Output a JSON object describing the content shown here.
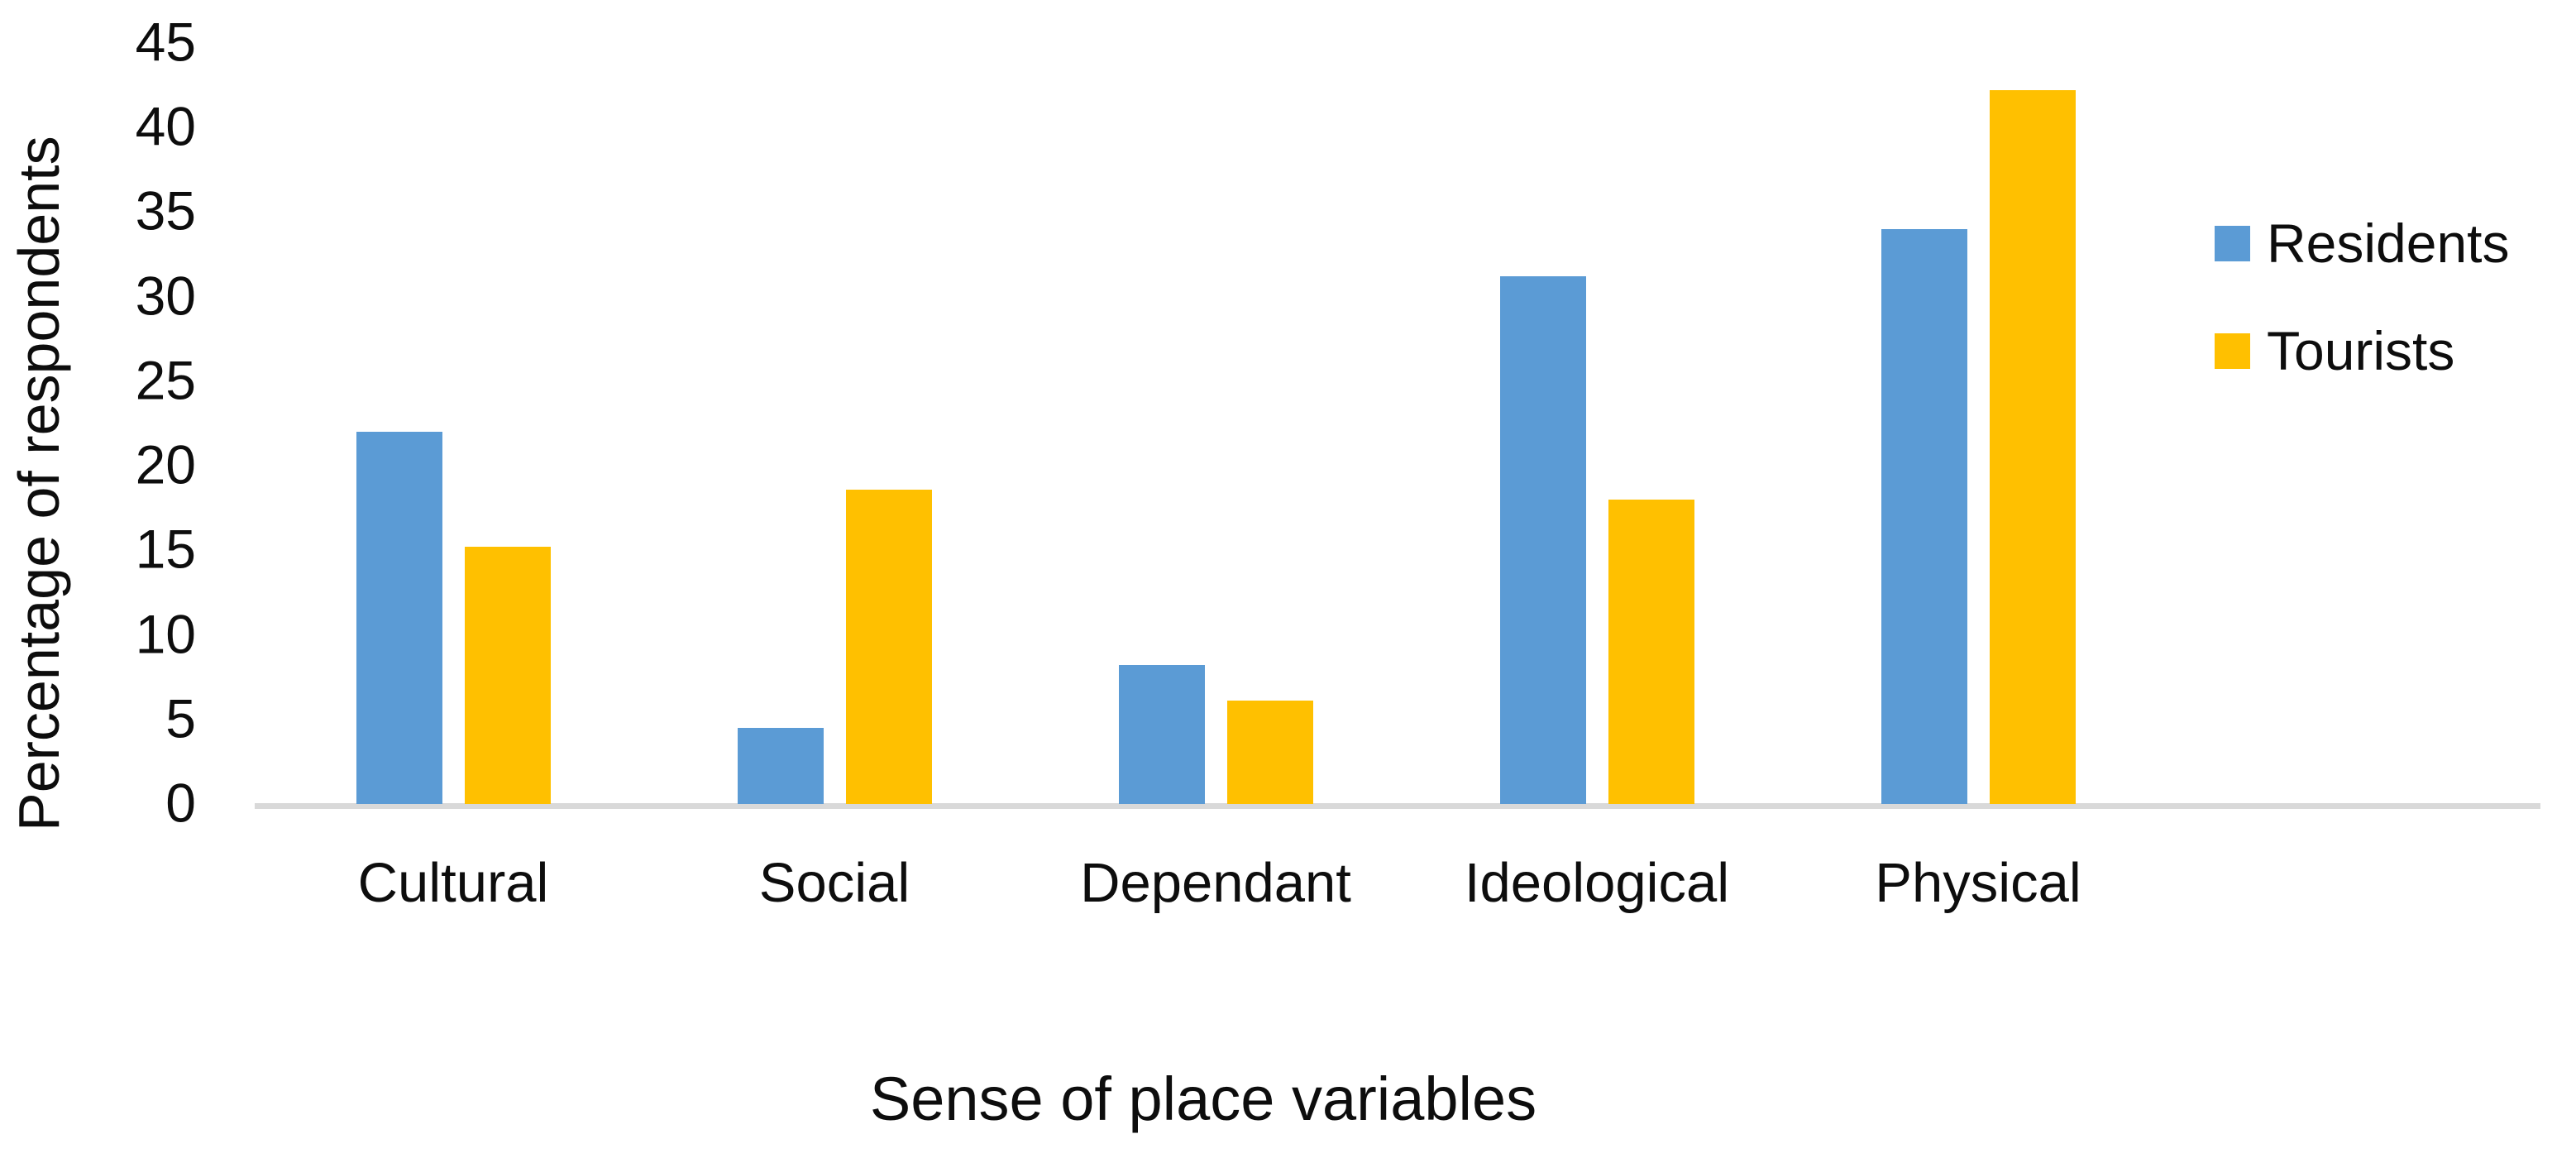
{
  "chart_data": {
    "type": "bar",
    "title": "",
    "categories": [
      "Cultural",
      "Social",
      "Dependant",
      "Ideological",
      "Physical"
    ],
    "series": [
      {
        "name": "Residents",
        "color": "#5B9BD5",
        "values": [
          22,
          4.5,
          8.2,
          31.2,
          34
        ]
      },
      {
        "name": "Tourists",
        "color": "#FFC000",
        "values": [
          15.2,
          18.6,
          6.1,
          18,
          42.2
        ]
      }
    ],
    "xlabel": "Sense of place variables",
    "ylabel": "Percentage of respondents",
    "ylim": [
      0,
      45
    ],
    "yticks": [
      0,
      5,
      10,
      15,
      20,
      25,
      30,
      35,
      40,
      45
    ],
    "grid": false,
    "legend_position": "right"
  },
  "colors": {
    "axis_line": "#D9D9D9",
    "text": "#0d0d0d",
    "background": "#FFFFFF"
  }
}
